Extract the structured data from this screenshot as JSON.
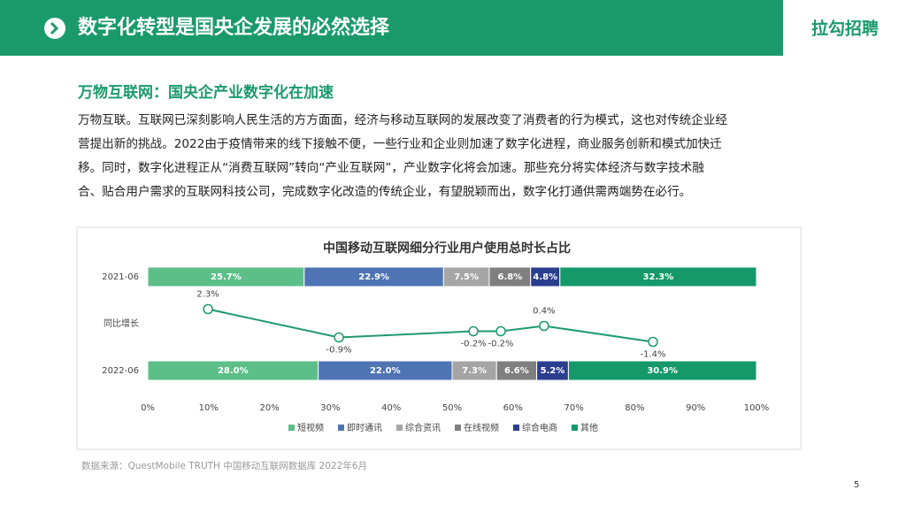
{
  "header": {
    "title": "数字化转型是国央企发展的必然选择",
    "brand": "拉勾招聘"
  },
  "subtitle": "万物互联网：国央企产业数字化在加速",
  "paragraph": [
    "万物互联。互联网已深刻影响人民生活的方方面面，经济与移动互联网的发展改变了消费者的行为模式，这也对传统企业经",
    "营提出新的挑战。2022由于疫情带来的线下接触不便，一些行业和企业则加速了数字化进程，商业服务创新和模式加快迁",
    "移。同时，数字化进程正从“消费互联网”转向“产业互联网”，产业数字化将会加速。那些充分将实体经济与数字技术融",
    "合、贴合用户需求的互联网科技公司，完成数字化改造的传统企业，有望脱颖而出，数字化打通供需两端势在必行。"
  ],
  "source": "数据来源：QuestMobile TRUTH 中国移动互联网数据库 2022年6月",
  "page_number": "5",
  "chart_data": [
    {
      "type": "bar",
      "orientation": "horizontal",
      "stacked": true,
      "title": "中国移动互联网细分行业用户使用总时长占比",
      "categories": [
        "2021-06",
        "2022-06"
      ],
      "series": [
        {
          "name": "短视频",
          "color": "#5cbf88",
          "values": [
            25.7,
            28.0
          ],
          "value_labels": [
            "25.7%",
            "28.0%"
          ]
        },
        {
          "name": "即时通讯",
          "color": "#4f74b3",
          "values": [
            22.9,
            22.0
          ],
          "value_labels": [
            "22.9%",
            "22.0%"
          ]
        },
        {
          "name": "综合资讯",
          "color": "#a5a5a5",
          "values": [
            7.5,
            7.3
          ],
          "value_labels": [
            "7.5%",
            "7.3%"
          ]
        },
        {
          "name": "在线视频",
          "color": "#7f7f7f",
          "values": [
            6.8,
            6.6
          ],
          "value_labels": [
            "6.8%",
            "6.6%"
          ]
        },
        {
          "name": "综合电商",
          "color": "#2b3d8f",
          "values": [
            4.8,
            5.2
          ],
          "value_labels": [
            "4.8%",
            "5.2%"
          ]
        },
        {
          "name": "其他",
          "color": "#15996a",
          "values": [
            32.3,
            30.9
          ],
          "value_labels": [
            "32.3%",
            "30.9%"
          ]
        }
      ],
      "xlim": [
        0,
        100
      ],
      "xticks": [
        {
          "value": 0,
          "label": "0%"
        },
        {
          "value": 10,
          "label": "10%"
        },
        {
          "value": 20,
          "label": "20%"
        },
        {
          "value": 30,
          "label": "30%"
        },
        {
          "value": 40,
          "label": "40%"
        },
        {
          "value": 50,
          "label": "50%"
        },
        {
          "value": 60,
          "label": "60%"
        },
        {
          "value": 70,
          "label": "70%"
        },
        {
          "value": 80,
          "label": "80%"
        },
        {
          "value": 90,
          "label": "90%"
        },
        {
          "value": 100,
          "label": "100%"
        }
      ],
      "legend": "bottom"
    },
    {
      "type": "line",
      "label": "同比增长",
      "color": "#1e9a6c",
      "x": [
        9.9,
        31.4,
        53.5,
        58,
        65.1,
        83
      ],
      "values": [
        2.3,
        -0.9,
        -0.2,
        -0.2,
        0.4,
        -1.4
      ],
      "value_labels": [
        "2.3%",
        "-0.9%",
        "-0.2%",
        "-0.2%",
        "0.4%",
        "-1.4%"
      ],
      "xlim": [
        0,
        100
      ],
      "ylim": [
        -3,
        4
      ]
    }
  ]
}
